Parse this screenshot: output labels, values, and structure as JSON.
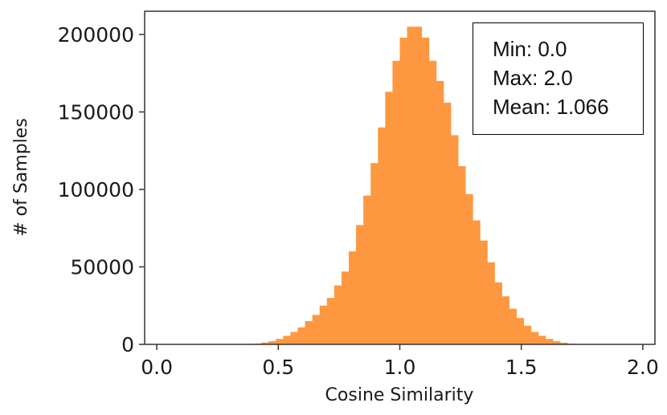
{
  "chart_data": {
    "type": "bar",
    "xlabel": "Cosine Similarity",
    "ylabel": "# of Samples",
    "xlim": [
      -0.05,
      2.05
    ],
    "ylim": [
      0,
      215000
    ],
    "xticks": [
      "0.0",
      "0.5",
      "1.0",
      "1.5",
      "2.0"
    ],
    "yticks": [
      "0",
      "50000",
      "100000",
      "150000",
      "200000"
    ],
    "bar_color": "#fd9840",
    "bin_width": 0.03,
    "bin_starts": [
      0.4,
      0.43,
      0.46,
      0.49,
      0.52,
      0.55,
      0.58,
      0.61,
      0.64,
      0.67,
      0.7,
      0.73,
      0.76,
      0.79,
      0.82,
      0.85,
      0.88,
      0.91,
      0.94,
      0.97,
      1.0,
      1.03,
      1.06,
      1.09,
      1.12,
      1.15,
      1.18,
      1.21,
      1.24,
      1.27,
      1.3,
      1.33,
      1.36,
      1.39,
      1.42,
      1.45,
      1.48,
      1.51,
      1.54,
      1.57,
      1.6,
      1.63,
      1.66,
      1.69
    ],
    "values": [
      500,
      1200,
      2000,
      3500,
      5500,
      8000,
      11000,
      15000,
      19000,
      25000,
      30000,
      38000,
      47000,
      60000,
      77000,
      96000,
      117000,
      140000,
      163000,
      183000,
      198000,
      205000,
      205000,
      198000,
      183000,
      170000,
      156000,
      135000,
      115000,
      97000,
      80000,
      67000,
      53000,
      40000,
      31000,
      23000,
      17000,
      12000,
      8000,
      5500,
      3500,
      2000,
      1000,
      500
    ],
    "stats": {
      "min": "Min: 0.0",
      "max": "Max: 2.0",
      "mean": "Mean: 1.066"
    }
  }
}
